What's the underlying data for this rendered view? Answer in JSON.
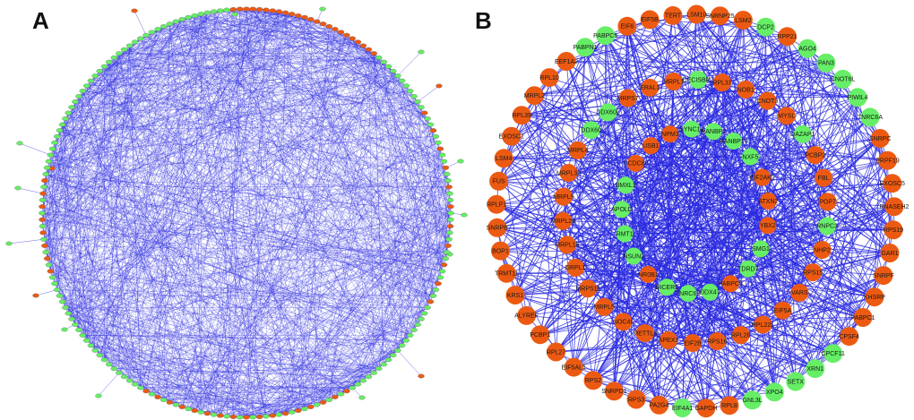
{
  "panels": [
    {
      "label": "A"
    },
    {
      "label": "B"
    }
  ],
  "colors": {
    "edge": "#2a2ae0",
    "node_orange": "#ec5a12",
    "node_green": "#66ee66",
    "background": "#ffffff"
  },
  "panelB": {
    "outer_ring": [
      {
        "name": "EIF6",
        "c": "o"
      },
      {
        "name": "EIF5B",
        "c": "o"
      },
      {
        "name": "TERT",
        "c": "o"
      },
      {
        "name": "LSM10",
        "c": "o"
      },
      {
        "name": "SNRNP25",
        "c": "o"
      },
      {
        "name": "LSM2",
        "c": "o"
      },
      {
        "name": "DCP2",
        "c": "g"
      },
      {
        "name": "RPP21",
        "c": "o"
      },
      {
        "name": "AGO4",
        "c": "g"
      },
      {
        "name": "PAN3",
        "c": "g"
      },
      {
        "name": "CNOT6L",
        "c": "g"
      },
      {
        "name": "PIWIL4",
        "c": "g"
      },
      {
        "name": "TNRC6A",
        "c": "g"
      },
      {
        "name": "SNRPC",
        "c": "o"
      },
      {
        "name": "PRPF19",
        "c": "o"
      },
      {
        "name": "EXOSC5",
        "c": "o"
      },
      {
        "name": "RNASEH2",
        "c": "o"
      },
      {
        "name": "RPS19",
        "c": "o"
      },
      {
        "name": "GAR1",
        "c": "o"
      },
      {
        "name": "SNRPF",
        "c": "o"
      },
      {
        "name": "KHSRP",
        "c": "o"
      },
      {
        "name": "PABPC1",
        "c": "o"
      },
      {
        "name": "CPSF4",
        "c": "o"
      },
      {
        "name": "CPCF11",
        "c": "g"
      },
      {
        "name": "XRN1",
        "c": "g"
      },
      {
        "name": "SETX",
        "c": "g"
      },
      {
        "name": "XPO4",
        "c": "g"
      },
      {
        "name": "GNL3L",
        "c": "g"
      },
      {
        "name": "RPL8",
        "c": "o"
      },
      {
        "name": "GAPDH",
        "c": "o"
      },
      {
        "name": "EIF4A1",
        "c": "g"
      },
      {
        "name": "PA2G4",
        "c": "o"
      },
      {
        "name": "RPS3",
        "c": "o"
      },
      {
        "name": "SNRPD1",
        "c": "o"
      },
      {
        "name": "RPS2",
        "c": "o"
      },
      {
        "name": "EIF5AL1",
        "c": "o"
      },
      {
        "name": "RPL27",
        "c": "o"
      },
      {
        "name": "PCBP1",
        "c": "o"
      },
      {
        "name": "ALYREF",
        "c": "o"
      },
      {
        "name": "KRS1",
        "c": "o"
      },
      {
        "name": "TRMT11",
        "c": "o"
      },
      {
        "name": "BOP1",
        "c": "o"
      },
      {
        "name": "SNRPB",
        "c": "o"
      },
      {
        "name": "RPLP1",
        "c": "o"
      },
      {
        "name": "FUS",
        "c": "o"
      },
      {
        "name": "LSM4",
        "c": "o"
      },
      {
        "name": "EXOSC1",
        "c": "o"
      },
      {
        "name": "RPL39",
        "c": "o"
      },
      {
        "name": "MRPL2",
        "c": "o"
      },
      {
        "name": "RPL10",
        "c": "o"
      },
      {
        "name": "EEF1A2",
        "c": "o"
      },
      {
        "name": "PABPN1",
        "c": "g"
      },
      {
        "name": "PABPC5",
        "c": "g"
      }
    ],
    "middle_ring": [
      {
        "name": "ERAL1",
        "c": "o"
      },
      {
        "name": "MRPL1",
        "c": "o"
      },
      {
        "name": "DECISBP2",
        "c": "g"
      },
      {
        "name": "RPL31",
        "c": "o"
      },
      {
        "name": "NOB1",
        "c": "o"
      },
      {
        "name": "CNOT3",
        "c": "o"
      },
      {
        "name": "MYSL",
        "c": "o"
      },
      {
        "name": "DAZAP1",
        "c": "g"
      },
      {
        "name": "PCBP2",
        "c": "o"
      },
      {
        "name": "FBL",
        "c": "o"
      },
      {
        "name": "POP7",
        "c": "o"
      },
      {
        "name": "RNPC3",
        "c": "g"
      },
      {
        "name": "NHP2",
        "c": "o"
      },
      {
        "name": "RPS15",
        "c": "o"
      },
      {
        "name": "VARS",
        "c": "o"
      },
      {
        "name": "EIF5A",
        "c": "o"
      },
      {
        "name": "RPL22L",
        "c": "o"
      },
      {
        "name": "RPL26",
        "c": "o"
      },
      {
        "name": "RPS16",
        "c": "o"
      },
      {
        "name": "EIF2B",
        "c": "o"
      },
      {
        "name": "APEX1",
        "c": "o"
      },
      {
        "name": "METTL3",
        "c": "o"
      },
      {
        "name": "NOC4L",
        "c": "o"
      },
      {
        "name": "MRPL5",
        "c": "o"
      },
      {
        "name": "MRPS11",
        "c": "o"
      },
      {
        "name": "DRPL1",
        "c": "o"
      },
      {
        "name": "MRPL15",
        "c": "o"
      },
      {
        "name": "MRPL2b",
        "c": "o"
      },
      {
        "name": "MRPL9",
        "c": "o"
      },
      {
        "name": "MRPL32",
        "c": "o"
      },
      {
        "name": "MRPL4",
        "c": "o"
      },
      {
        "name": "DDX60",
        "c": "g"
      },
      {
        "name": "DDX60L",
        "c": "g"
      },
      {
        "name": "MRPS7",
        "c": "o"
      }
    ],
    "inner_ring": [
      {
        "name": "NPM3",
        "c": "o"
      },
      {
        "name": "SYNC1a",
        "c": "g"
      },
      {
        "name": "RANBP2",
        "c": "g"
      },
      {
        "name": "RANBP17",
        "c": "g"
      },
      {
        "name": "NXF5",
        "c": "g"
      },
      {
        "name": "EIF2AK2",
        "c": "o"
      },
      {
        "name": "ATXN2",
        "c": "o"
      },
      {
        "name": "YBX2",
        "c": "o"
      },
      {
        "name": "SMG1",
        "c": "g"
      },
      {
        "name": "TDRD7",
        "c": "g"
      },
      {
        "name": "PABPC3",
        "c": "o"
      },
      {
        "name": "DDX47",
        "c": "g"
      },
      {
        "name": "TNRC6B",
        "c": "g"
      },
      {
        "name": "DICER1",
        "c": "g"
      },
      {
        "name": "NR0B1",
        "c": "o"
      },
      {
        "name": "NSUN2",
        "c": "g"
      },
      {
        "name": "RMT1",
        "c": "g"
      },
      {
        "name": "APOLD",
        "c": "g"
      },
      {
        "name": "BMXL1",
        "c": "g"
      },
      {
        "name": "CCDC86",
        "c": "o"
      },
      {
        "name": "USB1",
        "c": "o"
      }
    ]
  }
}
